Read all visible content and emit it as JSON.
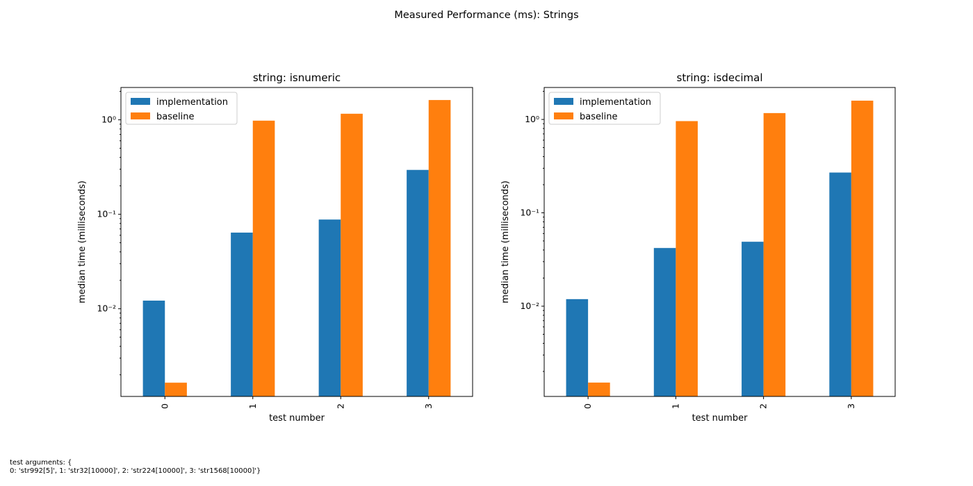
{
  "figure": {
    "suptitle": "Measured Performance (ms): Strings",
    "footnote_line1": "test arguments: {",
    "footnote_line2": "0: 'str992[5]', 1: 'str32[10000]', 2: 'str224[10000]', 3: 'str1568[10000]'}"
  },
  "colors": {
    "implementation": "#1f77b4",
    "baseline": "#ff7f0e"
  },
  "chart_data": [
    {
      "type": "bar",
      "title": "string: isnumeric",
      "xlabel": "test number",
      "ylabel": "median time (milliseconds)",
      "yscale": "log",
      "ylim": [
        0.00118,
        2.2
      ],
      "legend": "top-left",
      "categories": [
        "0",
        "1",
        "2",
        "3"
      ],
      "series": [
        {
          "name": "implementation",
          "values": [
            0.0122,
            0.064,
            0.088,
            0.295
          ]
        },
        {
          "name": "baseline",
          "values": [
            0.00165,
            0.98,
            1.16,
            1.62
          ]
        }
      ]
    },
    {
      "type": "bar",
      "title": "string: isdecimal",
      "xlabel": "test number",
      "ylabel": "median time (milliseconds)",
      "yscale": "log",
      "ylim": [
        0.00108,
        2.2
      ],
      "legend": "top-left",
      "categories": [
        "0",
        "1",
        "2",
        "3"
      ],
      "series": [
        {
          "name": "implementation",
          "values": [
            0.0119,
            0.042,
            0.049,
            0.27
          ]
        },
        {
          "name": "baseline",
          "values": [
            0.00152,
            0.96,
            1.17,
            1.59
          ]
        }
      ]
    }
  ]
}
